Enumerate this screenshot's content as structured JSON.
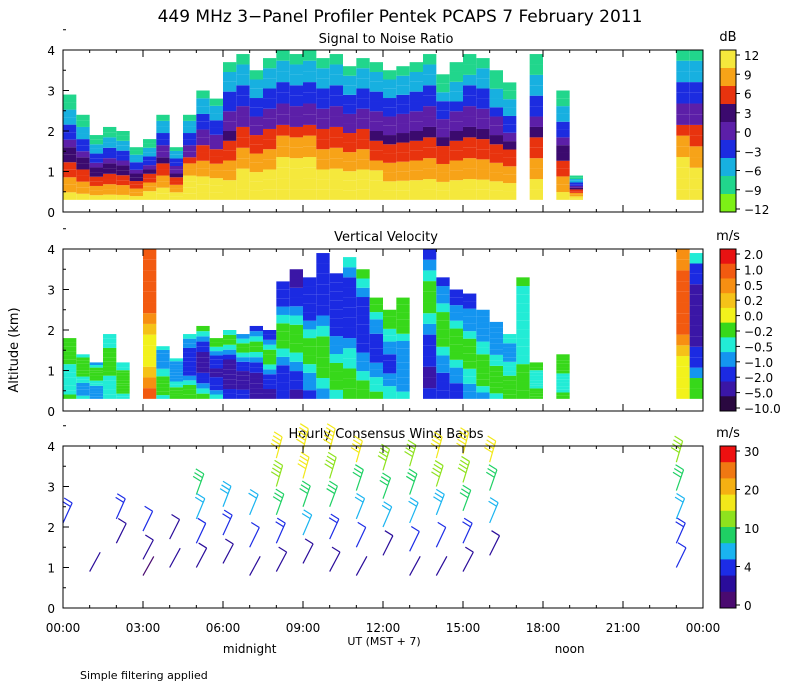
{
  "chart_data": [
    {
      "panel": "snr",
      "type": "heatmap",
      "title": "Signal to Noise Ratio",
      "ylabel": "",
      "ylim": [
        0,
        4
      ],
      "yticks": [
        "0",
        "1",
        "2",
        "3",
        "4"
      ],
      "colorbar_unit": "dB",
      "colorbar_labels": [
        "12",
        "9",
        "6",
        "3",
        "0",
        "−3",
        "−6",
        "−9",
        "−12"
      ],
      "colorbar_colors": [
        "#f5e83c",
        "#f7a318",
        "#e8330e",
        "#3b0a6e",
        "#5c1fa8",
        "#1c2ce0",
        "#17b0e0",
        "#21d68c",
        "#7df016"
      ],
      "data_columns": [
        {
          "x_hour": 0.0,
          "top_km": 2.9,
          "peak": 1.0
        },
        {
          "x_hour": 0.5,
          "top_km": 2.4,
          "peak": 1.1
        },
        {
          "x_hour": 1.0,
          "top_km": 1.9,
          "peak": 1.5
        },
        {
          "x_hour": 1.5,
          "top_km": 2.1,
          "peak": 1.2
        },
        {
          "x_hour": 2.0,
          "top_km": 2.0,
          "peak": 1.3
        },
        {
          "x_hour": 2.5,
          "top_km": 1.6,
          "peak": 1.0
        },
        {
          "x_hour": 3.0,
          "top_km": 1.8,
          "peak": 1.8
        },
        {
          "x_hour": 3.5,
          "top_km": 2.4,
          "peak": 2.6
        },
        {
          "x_hour": 4.0,
          "top_km": 1.6,
          "peak": 2.4
        },
        {
          "x_hour": 4.5,
          "top_km": 2.4,
          "peak": 3.8
        },
        {
          "x_hour": 5.0,
          "top_km": 3.0,
          "peak": 3.2
        },
        {
          "x_hour": 5.5,
          "top_km": 2.8,
          "peak": 2.9
        },
        {
          "x_hour": 6.0,
          "top_km": 3.7,
          "peak": 2.6
        },
        {
          "x_hour": 6.5,
          "top_km": 3.9,
          "peak": 2.9
        },
        {
          "x_hour": 7.0,
          "top_km": 3.5,
          "peak": 3.1
        },
        {
          "x_hour": 7.5,
          "top_km": 3.8,
          "peak": 3.6
        },
        {
          "x_hour": 8.0,
          "top_km": 4.0,
          "peak": 3.8
        },
        {
          "x_hour": 8.5,
          "top_km": 3.9,
          "peak": 4.0
        },
        {
          "x_hour": 9.0,
          "top_km": 4.0,
          "peak": 4.0
        },
        {
          "x_hour": 9.5,
          "top_km": 3.8,
          "peak": 3.4
        },
        {
          "x_hour": 10.0,
          "top_km": 3.9,
          "peak": 3.3
        },
        {
          "x_hour": 10.5,
          "top_km": 3.6,
          "peak": 3.0
        },
        {
          "x_hour": 11.0,
          "top_km": 3.8,
          "peak": 2.9
        },
        {
          "x_hour": 11.5,
          "top_km": 3.7,
          "peak": 2.7
        },
        {
          "x_hour": 12.0,
          "top_km": 3.5,
          "peak": 2.6
        },
        {
          "x_hour": 12.5,
          "top_km": 3.6,
          "peak": 2.5
        },
        {
          "x_hour": 13.0,
          "top_km": 3.7,
          "peak": 2.4
        },
        {
          "x_hour": 13.5,
          "top_km": 3.9,
          "peak": 2.6
        },
        {
          "x_hour": 14.0,
          "top_km": 3.4,
          "peak": 2.3
        },
        {
          "x_hour": 14.5,
          "top_km": 3.7,
          "peak": 2.2
        },
        {
          "x_hour": 15.0,
          "top_km": 3.9,
          "peak": 2.3
        },
        {
          "x_hour": 15.5,
          "top_km": 3.8,
          "peak": 2.4
        },
        {
          "x_hour": 16.0,
          "top_km": 3.5,
          "peak": 2.1
        },
        {
          "x_hour": 16.5,
          "top_km": 3.2,
          "peak": 2.0
        },
        {
          "x_hour": 17.5,
          "top_km": 3.9,
          "peak": 1.9
        },
        {
          "x_hour": 18.5,
          "top_km": 3.0,
          "peak": 1.5
        },
        {
          "x_hour": 19.0,
          "top_km": 0.9,
          "peak": 1.8
        },
        {
          "x_hour": 23.0,
          "top_km": 4.0,
          "peak": 3.9
        },
        {
          "x_hour": 23.5,
          "top_km": 4.0,
          "peak": 3.5
        }
      ]
    },
    {
      "panel": "vv",
      "type": "heatmap",
      "title": "Vertical Velocity",
      "ylabel": "Altitude (km)",
      "ylim": [
        0,
        4
      ],
      "yticks": [
        "0",
        "1",
        "2",
        "3",
        "4"
      ],
      "colorbar_unit": "m/s",
      "colorbar_labels": [
        "2.0",
        "1.0",
        "0.5",
        "0.2",
        "0.0",
        "−0.2",
        "−0.5",
        "−1.0",
        "−2.0",
        "−5.0",
        "−10.0"
      ],
      "colorbar_colors": [
        "#e81212",
        "#f25a10",
        "#f78f12",
        "#f5c218",
        "#f2f21c",
        "#37d81a",
        "#22ecd6",
        "#1495f0",
        "#1b2ae2",
        "#3a16a6",
        "#2a0840"
      ],
      "data_columns": [
        {
          "x_hour": 0.0,
          "top_km": 1.8,
          "peak": -0.4
        },
        {
          "x_hour": 0.5,
          "top_km": 1.4,
          "peak": -0.6
        },
        {
          "x_hour": 1.0,
          "top_km": 1.2,
          "peak": -0.8
        },
        {
          "x_hour": 1.5,
          "top_km": 1.9,
          "peak": -0.5
        },
        {
          "x_hour": 2.0,
          "top_km": 1.2,
          "peak": -0.3
        },
        {
          "x_hour": 3.0,
          "top_km": 4.0,
          "peak": 2.0
        },
        {
          "x_hour": 3.5,
          "top_km": 1.6,
          "peak": -0.7
        },
        {
          "x_hour": 4.0,
          "top_km": 1.3,
          "peak": -0.9
        },
        {
          "x_hour": 4.5,
          "top_km": 1.9,
          "peak": -1.5
        },
        {
          "x_hour": 5.0,
          "top_km": 2.1,
          "peak": -2.5
        },
        {
          "x_hour": 5.5,
          "top_km": 1.8,
          "peak": -2.2
        },
        {
          "x_hour": 6.0,
          "top_km": 2.0,
          "peak": -3.0
        },
        {
          "x_hour": 6.5,
          "top_km": 1.9,
          "peak": -2.4
        },
        {
          "x_hour": 7.0,
          "top_km": 2.1,
          "peak": -2.8
        },
        {
          "x_hour": 7.5,
          "top_km": 2.0,
          "peak": -2.1
        },
        {
          "x_hour": 8.0,
          "top_km": 3.2,
          "peak": -2.0
        },
        {
          "x_hour": 8.5,
          "top_km": 3.5,
          "peak": -2.3
        },
        {
          "x_hour": 9.0,
          "top_km": 3.3,
          "peak": -1.9
        },
        {
          "x_hour": 9.5,
          "top_km": 3.9,
          "peak": -1.7
        },
        {
          "x_hour": 10.0,
          "top_km": 3.4,
          "peak": -1.8
        },
        {
          "x_hour": 10.5,
          "top_km": 3.8,
          "peak": -1.5
        },
        {
          "x_hour": 11.0,
          "top_km": 3.5,
          "peak": -1.6
        },
        {
          "x_hour": 11.5,
          "top_km": 2.8,
          "peak": -1.2
        },
        {
          "x_hour": 12.0,
          "top_km": 2.5,
          "peak": -1.1
        },
        {
          "x_hour": 12.5,
          "top_km": 2.8,
          "peak": -0.9
        },
        {
          "x_hour": 13.5,
          "top_km": 4.0,
          "peak": -2.2
        },
        {
          "x_hour": 14.0,
          "top_km": 3.3,
          "peak": -1.4
        },
        {
          "x_hour": 14.5,
          "top_km": 3.0,
          "peak": -1.3
        },
        {
          "x_hour": 15.0,
          "top_km": 2.9,
          "peak": -1.1
        },
        {
          "x_hour": 15.5,
          "top_km": 2.5,
          "peak": -0.9
        },
        {
          "x_hour": 16.0,
          "top_km": 2.2,
          "peak": -0.8
        },
        {
          "x_hour": 16.5,
          "top_km": 1.9,
          "peak": -0.6
        },
        {
          "x_hour": 17.0,
          "top_km": 3.3,
          "peak": -0.5
        },
        {
          "x_hour": 17.5,
          "top_km": 1.2,
          "peak": -0.4
        },
        {
          "x_hour": 18.5,
          "top_km": 1.4,
          "peak": -0.3
        },
        {
          "x_hour": 23.0,
          "top_km": 4.0,
          "peak": 1.5
        },
        {
          "x_hour": 23.5,
          "top_km": 3.9,
          "peak": -3.5
        }
      ]
    },
    {
      "panel": "wind",
      "type": "scatter",
      "title": "Hourly Consensus Wind Barbs",
      "ylabel": "",
      "ylim": [
        0,
        4
      ],
      "yticks": [
        "0",
        "1",
        "2",
        "3",
        "4"
      ],
      "colorbar_unit": "m/s",
      "colorbar_labels": [
        "30",
        "20",
        "10",
        "4",
        "0"
      ],
      "colorbar_colors": [
        "#ee1010",
        "#f07812",
        "#f5b012",
        "#f2e81a",
        "#8ee21e",
        "#1fd064",
        "#1ab4f0",
        "#1c2ce6",
        "#2a0c9a",
        "#4a0a70"
      ],
      "barbs": [
        {
          "x_hour": 0.0,
          "alt_km": 2.1,
          "speed_ms": 8
        },
        {
          "x_hour": 1.0,
          "alt_km": 0.9,
          "speed_ms": 2
        },
        {
          "x_hour": 2.0,
          "alt_km": 2.2,
          "speed_ms": 9
        },
        {
          "x_hour": 2.0,
          "alt_km": 1.6,
          "speed_ms": 5
        },
        {
          "x_hour": 3.0,
          "alt_km": 1.9,
          "speed_ms": 6
        },
        {
          "x_hour": 3.0,
          "alt_km": 1.2,
          "speed_ms": 3
        },
        {
          "x_hour": 3.0,
          "alt_km": 0.8,
          "speed_ms": 1
        },
        {
          "x_hour": 4.0,
          "alt_km": 1.7,
          "speed_ms": 5
        },
        {
          "x_hour": 4.0,
          "alt_km": 1.0,
          "speed_ms": 2
        },
        {
          "x_hour": 5.0,
          "alt_km": 2.8,
          "speed_ms": 15
        },
        {
          "x_hour": 5.0,
          "alt_km": 2.2,
          "speed_ms": 11
        },
        {
          "x_hour": 5.0,
          "alt_km": 1.6,
          "speed_ms": 7
        },
        {
          "x_hour": 5.0,
          "alt_km": 1.0,
          "speed_ms": 3
        },
        {
          "x_hour": 6.0,
          "alt_km": 2.5,
          "speed_ms": 13
        },
        {
          "x_hour": 6.0,
          "alt_km": 1.8,
          "speed_ms": 8
        },
        {
          "x_hour": 6.0,
          "alt_km": 1.1,
          "speed_ms": 3
        },
        {
          "x_hour": 7.0,
          "alt_km": 2.3,
          "speed_ms": 11
        },
        {
          "x_hour": 7.0,
          "alt_km": 1.5,
          "speed_ms": 6
        },
        {
          "x_hour": 7.0,
          "alt_km": 0.8,
          "speed_ms": 2
        },
        {
          "x_hour": 8.0,
          "alt_km": 3.7,
          "speed_ms": 22
        },
        {
          "x_hour": 8.0,
          "alt_km": 3.0,
          "speed_ms": 20
        },
        {
          "x_hour": 8.0,
          "alt_km": 2.3,
          "speed_ms": 15
        },
        {
          "x_hour": 8.0,
          "alt_km": 1.6,
          "speed_ms": 9
        },
        {
          "x_hour": 8.0,
          "alt_km": 0.9,
          "speed_ms": 3
        },
        {
          "x_hour": 9.0,
          "alt_km": 3.9,
          "speed_ms": 24
        },
        {
          "x_hour": 9.0,
          "alt_km": 3.2,
          "speed_ms": 21
        },
        {
          "x_hour": 9.0,
          "alt_km": 2.5,
          "speed_ms": 16
        },
        {
          "x_hour": 9.0,
          "alt_km": 1.8,
          "speed_ms": 10
        },
        {
          "x_hour": 9.0,
          "alt_km": 1.1,
          "speed_ms": 4
        },
        {
          "x_hour": 10.0,
          "alt_km": 3.9,
          "speed_ms": 23
        },
        {
          "x_hour": 10.0,
          "alt_km": 3.2,
          "speed_ms": 19
        },
        {
          "x_hour": 10.0,
          "alt_km": 2.5,
          "speed_ms": 14
        },
        {
          "x_hour": 10.0,
          "alt_km": 1.7,
          "speed_ms": 8
        },
        {
          "x_hour": 10.0,
          "alt_km": 0.9,
          "speed_ms": 3
        },
        {
          "x_hour": 11.0,
          "alt_km": 3.6,
          "speed_ms": 21
        },
        {
          "x_hour": 11.0,
          "alt_km": 2.9,
          "speed_ms": 17
        },
        {
          "x_hour": 11.0,
          "alt_km": 2.2,
          "speed_ms": 12
        },
        {
          "x_hour": 11.0,
          "alt_km": 1.5,
          "speed_ms": 7
        },
        {
          "x_hour": 11.0,
          "alt_km": 0.8,
          "speed_ms": 2
        },
        {
          "x_hour": 12.0,
          "alt_km": 3.4,
          "speed_ms": 19
        },
        {
          "x_hour": 12.0,
          "alt_km": 2.7,
          "speed_ms": 15
        },
        {
          "x_hour": 12.0,
          "alt_km": 2.0,
          "speed_ms": 10
        },
        {
          "x_hour": 12.0,
          "alt_km": 1.3,
          "speed_ms": 5
        },
        {
          "x_hour": 13.0,
          "alt_km": 3.5,
          "speed_ms": 20
        },
        {
          "x_hour": 13.0,
          "alt_km": 2.8,
          "speed_ms": 16
        },
        {
          "x_hour": 13.0,
          "alt_km": 2.1,
          "speed_ms": 11
        },
        {
          "x_hour": 13.0,
          "alt_km": 1.4,
          "speed_ms": 6
        },
        {
          "x_hour": 13.0,
          "alt_km": 0.8,
          "speed_ms": 2
        },
        {
          "x_hour": 14.0,
          "alt_km": 3.7,
          "speed_ms": 22
        },
        {
          "x_hour": 14.0,
          "alt_km": 3.0,
          "speed_ms": 18
        },
        {
          "x_hour": 14.0,
          "alt_km": 2.3,
          "speed_ms": 13
        },
        {
          "x_hour": 14.0,
          "alt_km": 1.5,
          "speed_ms": 7
        },
        {
          "x_hour": 14.0,
          "alt_km": 0.8,
          "speed_ms": 2
        },
        {
          "x_hour": 15.0,
          "alt_km": 3.8,
          "speed_ms": 23
        },
        {
          "x_hour": 15.0,
          "alt_km": 3.1,
          "speed_ms": 19
        },
        {
          "x_hour": 15.0,
          "alt_km": 2.4,
          "speed_ms": 14
        },
        {
          "x_hour": 15.0,
          "alt_km": 1.6,
          "speed_ms": 8
        },
        {
          "x_hour": 15.0,
          "alt_km": 0.9,
          "speed_ms": 3
        },
        {
          "x_hour": 16.0,
          "alt_km": 3.6,
          "speed_ms": 21
        },
        {
          "x_hour": 16.0,
          "alt_km": 2.9,
          "speed_ms": 16
        },
        {
          "x_hour": 16.0,
          "alt_km": 2.1,
          "speed_ms": 11
        },
        {
          "x_hour": 16.0,
          "alt_km": 1.3,
          "speed_ms": 5
        },
        {
          "x_hour": 23.0,
          "alt_km": 3.6,
          "speed_ms": 20
        },
        {
          "x_hour": 23.0,
          "alt_km": 2.9,
          "speed_ms": 16
        },
        {
          "x_hour": 23.0,
          "alt_km": 2.2,
          "speed_ms": 12
        },
        {
          "x_hour": 23.0,
          "alt_km": 1.6,
          "speed_ms": 9
        },
        {
          "x_hour": 23.0,
          "alt_km": 1.0,
          "speed_ms": 6
        }
      ]
    }
  ],
  "figure": {
    "title": "449 MHz 3−Panel Profiler Pentek PCAPS  7 February 2011",
    "xaxis_label": "UT  (MST + 7)",
    "x_tick_labels": [
      "00:00",
      "03:00",
      "06:00",
      "09:00",
      "12:00",
      "15:00",
      "18:00",
      "21:00",
      "00:00"
    ],
    "x_range_hours": [
      0,
      24
    ],
    "local_markers": [
      {
        "label": "midnight",
        "x_hour": 7
      },
      {
        "label": "noon",
        "x_hour": 19
      }
    ],
    "footnote": "Simple filtering applied"
  }
}
